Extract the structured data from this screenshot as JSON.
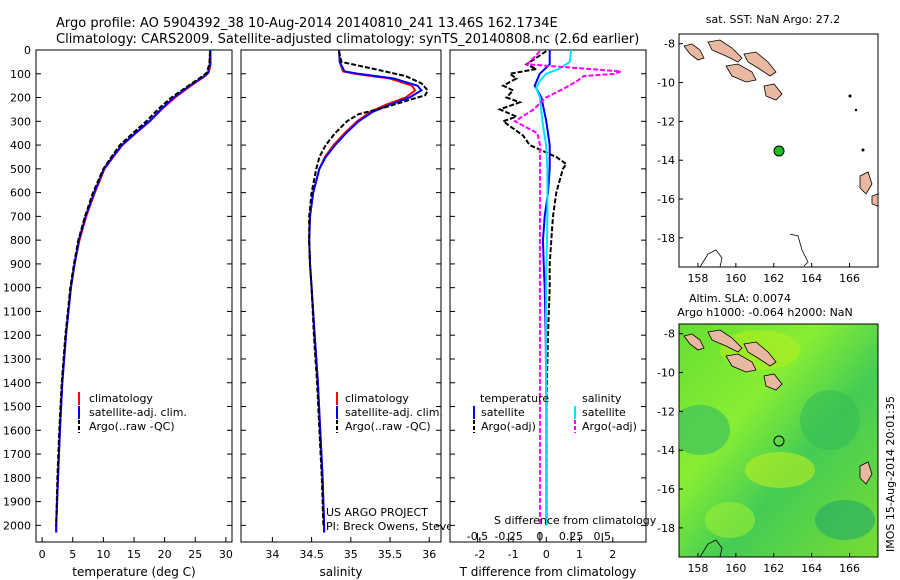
{
  "header": {
    "line1": "Argo profile: AO 5904392_38 10-Aug-2014 20140810_241 13.46S 162.1734E",
    "line2": "Climatology: CARS2009. Satellite-adjusted climatology: synTS_20140808.nc (2.6d earlier)"
  },
  "side_stamp": "IMOS 15-Aug-2014 20:01:35",
  "credits": {
    "line1": "US ARGO PROJECT",
    "line2": "PI: Breck Owens, Steve Jayne, and P. Robbi"
  },
  "colors": {
    "climatology": "#ff0000",
    "satellite": "#0000ff",
    "argo": "#000000",
    "sal_satellite": "#00e5ff",
    "sal_argo": "#ff00ff",
    "land": "#e8b9a0",
    "sst_ocean": "#55dd22",
    "float_marker": "#22bb22"
  },
  "legends": {
    "temp": [
      "climatology",
      "satellite-adj. clim.",
      "Argo(..raw -QC)"
    ],
    "sal": [
      "climatology",
      "satellite-adj. clim.",
      "Argo(..raw -QC)"
    ],
    "diff_t_title": "temperature",
    "diff_s_title": "salinity",
    "diff_t": [
      "satellite",
      "Argo(-adj)"
    ],
    "diff_s": [
      "satellite",
      "Argo(-adj)"
    ]
  },
  "chart_data": [
    {
      "type": "line",
      "xlabel": "temperature (deg C)",
      "xlim": [
        -1,
        31
      ],
      "ylim": [
        2070,
        0
      ],
      "xticks": [
        0,
        5,
        10,
        15,
        20,
        25,
        30
      ],
      "yticks": [
        0,
        100,
        200,
        300,
        400,
        500,
        600,
        700,
        800,
        900,
        1000,
        1100,
        1200,
        1300,
        1400,
        1500,
        1600,
        1700,
        1800,
        1900,
        2000
      ],
      "series": [
        {
          "name": "climatology",
          "depth": [
            0,
            20,
            60,
            95,
            110,
            150,
            200,
            250,
            300,
            350,
            400,
            450,
            500,
            600,
            700,
            800,
            900,
            1000,
            1200,
            1400,
            1600,
            1800,
            2000,
            2030
          ],
          "values": [
            27.5,
            27.5,
            27.5,
            27.2,
            26.6,
            24.3,
            21.7,
            19.5,
            17.6,
            15.3,
            13.1,
            11.6,
            10.2,
            8.6,
            7.2,
            6.1,
            5.3,
            4.7,
            3.9,
            3.3,
            2.9,
            2.6,
            2.3,
            2.3
          ]
        },
        {
          "name": "satellite-adj. clim.",
          "depth": [
            0,
            20,
            60,
            95,
            110,
            150,
            200,
            250,
            300,
            350,
            400,
            450,
            500,
            600,
            700,
            800,
            900,
            1000,
            1200,
            1400,
            1600,
            1800,
            2000,
            2030
          ],
          "values": [
            27.5,
            27.4,
            27.4,
            27.1,
            26.5,
            24.1,
            21.5,
            19.4,
            17.5,
            15.2,
            13.0,
            11.5,
            10.1,
            8.5,
            7.1,
            6.0,
            5.3,
            4.7,
            3.9,
            3.3,
            2.9,
            2.6,
            2.3,
            2.3
          ]
        },
        {
          "name": "Argo(..raw -QC)",
          "depth": [
            5,
            20,
            60,
            95,
            110,
            150,
            200,
            250,
            300,
            350,
            400,
            450,
            500,
            600,
            700,
            800,
            900,
            1000,
            1200,
            1400,
            1600,
            1800,
            2000
          ],
          "values": [
            27.4,
            27.4,
            27.3,
            26.9,
            26.2,
            23.9,
            21.1,
            18.9,
            17.0,
            14.8,
            12.7,
            11.3,
            10.0,
            8.3,
            7.0,
            5.9,
            5.2,
            4.6,
            3.8,
            3.2,
            2.8,
            2.5,
            2.3
          ]
        }
      ]
    },
    {
      "type": "line",
      "xlabel": "salinity",
      "xlim": [
        33.6,
        36.15
      ],
      "ylim": [
        2070,
        0
      ],
      "xticks": [
        34,
        34.5,
        35,
        35.5,
        36
      ],
      "series": [
        {
          "name": "climatology",
          "depth": [
            0,
            50,
            90,
            100,
            120,
            150,
            170,
            200,
            230,
            260,
            300,
            350,
            400,
            450,
            500,
            600,
            700,
            800,
            900,
            1000,
            1200,
            1400,
            1600,
            1800,
            2000,
            2030
          ],
          "values": [
            34.85,
            34.86,
            34.9,
            35.05,
            35.5,
            35.78,
            35.82,
            35.7,
            35.45,
            35.25,
            35.08,
            34.92,
            34.78,
            34.67,
            34.6,
            34.52,
            34.48,
            34.47,
            34.48,
            34.5,
            34.54,
            34.58,
            34.61,
            34.64,
            34.66,
            34.66
          ]
        },
        {
          "name": "satellite-adj. clim.",
          "depth": [
            0,
            50,
            90,
            100,
            120,
            150,
            170,
            200,
            230,
            260,
            300,
            350,
            400,
            450,
            500,
            600,
            700,
            800,
            900,
            1000,
            1200,
            1400,
            1600,
            1800,
            2000,
            2030
          ],
          "values": [
            34.85,
            34.86,
            34.92,
            35.1,
            35.55,
            35.85,
            35.9,
            35.75,
            35.5,
            35.28,
            35.1,
            34.94,
            34.8,
            34.68,
            34.6,
            34.52,
            34.48,
            34.47,
            34.48,
            34.5,
            34.54,
            34.58,
            34.61,
            34.64,
            34.66,
            34.66
          ]
        },
        {
          "name": "Argo(..raw -QC)",
          "depth": [
            5,
            50,
            80,
            110,
            140,
            170,
            190,
            210,
            240,
            270,
            300,
            350,
            400,
            450,
            500,
            600,
            700,
            800,
            900,
            1000,
            1200,
            1400,
            1600,
            1800,
            2000
          ],
          "values": [
            34.85,
            34.88,
            35.3,
            35.7,
            35.9,
            35.98,
            35.95,
            35.75,
            35.45,
            35.1,
            34.95,
            34.8,
            34.68,
            34.6,
            34.56,
            34.5,
            34.47,
            34.47,
            34.48,
            34.5,
            34.53,
            34.57,
            34.6,
            34.63,
            34.65
          ]
        }
      ]
    },
    {
      "type": "line",
      "xlabel": "T difference from climatology",
      "xlabel_top": "S difference from climatology",
      "xlim_t": [
        -2.9,
        3.0
      ],
      "xlim_s": [
        -0.72,
        0.85
      ],
      "ylim": [
        2070,
        0
      ],
      "xticks_t": [
        -2,
        -1,
        0,
        1,
        2
      ],
      "xticks_s": [
        -0.5,
        -0.25,
        0,
        0.25,
        0.5
      ],
      "series": [
        {
          "name": "temperature satellite",
          "depth": [
            0,
            60,
            100,
            150,
            200,
            300,
            400,
            500,
            600,
            700,
            800,
            900,
            1000,
            1200,
            1500,
            1800,
            2000
          ],
          "values": [
            0.1,
            0.1,
            -0.2,
            -0.35,
            -0.15,
            0.0,
            0.1,
            0.1,
            0.05,
            -0.05,
            -0.1,
            -0.08,
            -0.05,
            -0.02,
            0.0,
            0.0,
            0.0
          ]
        },
        {
          "name": "temperature Argo(-adj)",
          "depth": [
            5,
            60,
            80,
            100,
            120,
            150,
            170,
            200,
            220,
            250,
            280,
            300,
            330,
            360,
            400,
            450,
            480,
            500,
            550,
            600,
            700,
            800,
            900,
            1000,
            1200,
            1500,
            1800,
            2000
          ],
          "values": [
            0.0,
            -0.6,
            -0.3,
            -1.1,
            -0.9,
            -1.3,
            -1.0,
            -1.2,
            -0.8,
            -1.4,
            -0.9,
            -1.3,
            -1.0,
            -0.7,
            -0.5,
            0.3,
            0.6,
            0.5,
            0.4,
            0.3,
            0.2,
            0.15,
            0.1,
            0.1,
            0.05,
            0.0,
            0.0,
            0.0
          ]
        },
        {
          "name": "salinity satellite",
          "depth": [
            0,
            50,
            80,
            100,
            130,
            160,
            200,
            300,
            400,
            500,
            700,
            1000,
            1500,
            2000
          ],
          "values": [
            0.25,
            0.24,
            0.15,
            0.05,
            0.0,
            -0.03,
            0.0,
            0.02,
            0.05,
            0.06,
            0.06,
            0.05,
            0.05,
            0.05
          ]
        },
        {
          "name": "salinity Argo(-adj)",
          "depth": [
            5,
            60,
            90,
            100,
            110,
            130,
            160,
            200,
            250,
            300,
            350,
            400,
            450,
            500,
            600,
            800,
            1000,
            1500,
            2000
          ],
          "values": [
            0.0,
            -0.1,
            0.65,
            0.6,
            0.35,
            0.3,
            0.2,
            0.05,
            -0.05,
            -0.2,
            -0.02,
            0.0,
            0.0,
            0.0,
            0.0,
            0.0,
            0.0,
            0.0,
            0.0
          ]
        }
      ]
    }
  ],
  "maps": {
    "top_title": "sat. SST: NaN Argo: 27.2",
    "bottom_title1": "Altim. SLA: 0.0074",
    "bottom_title2": "Argo h1000: -0.064 h2000: NaN",
    "lon_ticks": [
      "158",
      "160",
      "162",
      "164",
      "166"
    ],
    "lat_ticks": [
      "-8",
      "-10",
      "-12",
      "-14",
      "-16",
      "-18"
    ],
    "lon_range": [
      157.0,
      167.5
    ],
    "lat_range": [
      -19.5,
      -7.5
    ],
    "float_lon": 162.17,
    "float_lat": -13.46
  }
}
